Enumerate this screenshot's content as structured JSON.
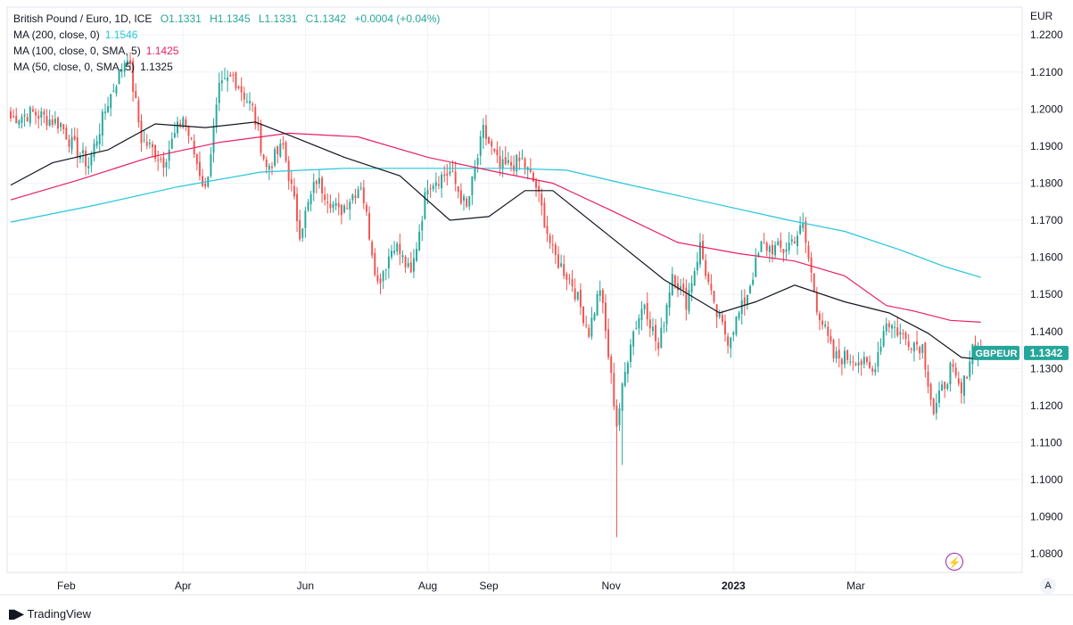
{
  "header": {
    "symbol_title": "British Pound / Euro, 1D, ICE",
    "open": "O1.1331",
    "high": "H1.1345",
    "low": "L1.1331",
    "close": "C1.1342",
    "change": "+0.0004 (+0.04%)"
  },
  "indicators": [
    {
      "label": "MA (200, close, 0)",
      "value": "1.1546",
      "color": "#26c6da"
    },
    {
      "label": "MA (100, close, 0, SMA, 5)",
      "value": "1.1425",
      "color": "#e91e63"
    },
    {
      "label": "MA (50, close, 0, SMA, 5)",
      "value": "1.1325",
      "color": "#131722"
    }
  ],
  "branding": {
    "name": "TradingView"
  },
  "controls": {
    "auto_label": "A",
    "flash_icon": "⚡"
  },
  "colors": {
    "up": "#26a69a",
    "down": "#ef5350",
    "grid": "#f0f3fa",
    "axis_text": "#131722"
  },
  "chart_data": {
    "type": "candlestick",
    "title": "British Pound / Euro, 1D, ICE",
    "currency": "EUR",
    "ylim": [
      1.075,
      1.2275
    ],
    "y_ticks": [
      "1.0800",
      "1.0900",
      "1.1000",
      "1.1100",
      "1.1200",
      "1.1300",
      "1.1400",
      "1.1500",
      "1.1600",
      "1.1700",
      "1.1800",
      "1.1900",
      "1.2000",
      "1.2100",
      "1.2200"
    ],
    "x_labels": [
      "Feb",
      "Apr",
      "Jun",
      "Aug",
      "Sep",
      "Nov",
      "2023",
      "Mar"
    ],
    "last_price": {
      "symbol": "GBPEUR",
      "value": "1.1342"
    },
    "keypoints": [
      {
        "d": 0,
        "p": 1.1975
      },
      {
        "d": 8,
        "p": 1.199
      },
      {
        "d": 18,
        "p": 1.196
      },
      {
        "d": 22,
        "p": 1.1905
      },
      {
        "d": 28,
        "p": 1.185
      },
      {
        "d": 35,
        "p": 1.202
      },
      {
        "d": 42,
        "p": 1.215
      },
      {
        "d": 47,
        "p": 1.192
      },
      {
        "d": 55,
        "p": 1.186
      },
      {
        "d": 62,
        "p": 1.198
      },
      {
        "d": 70,
        "p": 1.178
      },
      {
        "d": 75,
        "p": 1.205
      },
      {
        "d": 80,
        "p": 1.209
      },
      {
        "d": 87,
        "p": 1.2
      },
      {
        "d": 92,
        "p": 1.184
      },
      {
        "d": 98,
        "p": 1.19
      },
      {
        "d": 104,
        "p": 1.167
      },
      {
        "d": 110,
        "p": 1.181
      },
      {
        "d": 118,
        "p": 1.172
      },
      {
        "d": 126,
        "p": 1.18
      },
      {
        "d": 132,
        "p": 1.153
      },
      {
        "d": 138,
        "p": 1.164
      },
      {
        "d": 144,
        "p": 1.155
      },
      {
        "d": 150,
        "p": 1.18
      },
      {
        "d": 158,
        "p": 1.183
      },
      {
        "d": 164,
        "p": 1.173
      },
      {
        "d": 170,
        "p": 1.194
      },
      {
        "d": 176,
        "p": 1.184
      },
      {
        "d": 184,
        "p": 1.186
      },
      {
        "d": 189,
        "p": 1.179
      },
      {
        "d": 195,
        "p": 1.161
      },
      {
        "d": 202,
        "p": 1.153
      },
      {
        "d": 208,
        "p": 1.14
      },
      {
        "d": 212,
        "p": 1.152
      },
      {
        "d": 218,
        "p": 1.115
      },
      {
        "d": 223,
        "p": 1.138
      },
      {
        "d": 228,
        "p": 1.148
      },
      {
        "d": 233,
        "p": 1.135
      },
      {
        "d": 238,
        "p": 1.156
      },
      {
        "d": 243,
        "p": 1.148
      },
      {
        "d": 248,
        "p": 1.163
      },
      {
        "d": 253,
        "p": 1.146
      },
      {
        "d": 258,
        "p": 1.138
      },
      {
        "d": 264,
        "p": 1.148
      },
      {
        "d": 270,
        "p": 1.163
      },
      {
        "d": 278,
        "p": 1.162
      },
      {
        "d": 285,
        "p": 1.168
      },
      {
        "d": 290,
        "p": 1.147
      },
      {
        "d": 296,
        "p": 1.133
      },
      {
        "d": 304,
        "p": 1.133
      },
      {
        "d": 310,
        "p": 1.129
      },
      {
        "d": 315,
        "p": 1.143
      },
      {
        "d": 322,
        "p": 1.138
      },
      {
        "d": 328,
        "p": 1.136
      },
      {
        "d": 332,
        "p": 1.118
      },
      {
        "d": 338,
        "p": 1.13
      },
      {
        "d": 342,
        "p": 1.123
      },
      {
        "d": 346,
        "p": 1.136
      },
      {
        "d": 349,
        "p": 1.1342
      }
    ],
    "ma_lines": [
      {
        "name": "MA (200, close, 0)",
        "color": "#26c6da",
        "points": [
          [
            0,
            1.1695
          ],
          [
            30,
            1.174
          ],
          [
            60,
            1.179
          ],
          [
            90,
            1.183
          ],
          [
            120,
            1.184
          ],
          [
            150,
            1.184
          ],
          [
            180,
            1.184
          ],
          [
            200,
            1.1835
          ],
          [
            220,
            1.18
          ],
          [
            250,
            1.175
          ],
          [
            280,
            1.17
          ],
          [
            300,
            1.167
          ],
          [
            320,
            1.162
          ],
          [
            336,
            1.1575
          ],
          [
            349,
            1.1546
          ]
        ]
      },
      {
        "name": "MA (100, close, 0, SMA, 5)",
        "color": "#e91e63",
        "points": [
          [
            0,
            1.1755
          ],
          [
            25,
            1.181
          ],
          [
            50,
            1.187
          ],
          [
            75,
            1.191
          ],
          [
            100,
            1.1935
          ],
          [
            125,
            1.1925
          ],
          [
            150,
            1.187
          ],
          [
            175,
            1.183
          ],
          [
            195,
            1.18
          ],
          [
            215,
            1.173
          ],
          [
            240,
            1.164
          ],
          [
            262,
            1.161
          ],
          [
            282,
            1.159
          ],
          [
            300,
            1.155
          ],
          [
            315,
            1.147
          ],
          [
            325,
            1.1455
          ],
          [
            338,
            1.143
          ],
          [
            349,
            1.1425
          ]
        ]
      },
      {
        "name": "MA (50, close, 0, SMA, 5)",
        "color": "#131722",
        "points": [
          [
            0,
            1.1795
          ],
          [
            15,
            1.1855
          ],
          [
            35,
            1.189
          ],
          [
            52,
            1.196
          ],
          [
            70,
            1.195
          ],
          [
            88,
            1.1965
          ],
          [
            100,
            1.193
          ],
          [
            120,
            1.187
          ],
          [
            140,
            1.182
          ],
          [
            158,
            1.17
          ],
          [
            172,
            1.171
          ],
          [
            185,
            1.178
          ],
          [
            195,
            1.178
          ],
          [
            215,
            1.166
          ],
          [
            235,
            1.154
          ],
          [
            255,
            1.145
          ],
          [
            268,
            1.148
          ],
          [
            282,
            1.1525
          ],
          [
            300,
            1.148
          ],
          [
            316,
            1.145
          ],
          [
            330,
            1.1395
          ],
          [
            342,
            1.133
          ],
          [
            349,
            1.1325
          ]
        ]
      }
    ]
  }
}
